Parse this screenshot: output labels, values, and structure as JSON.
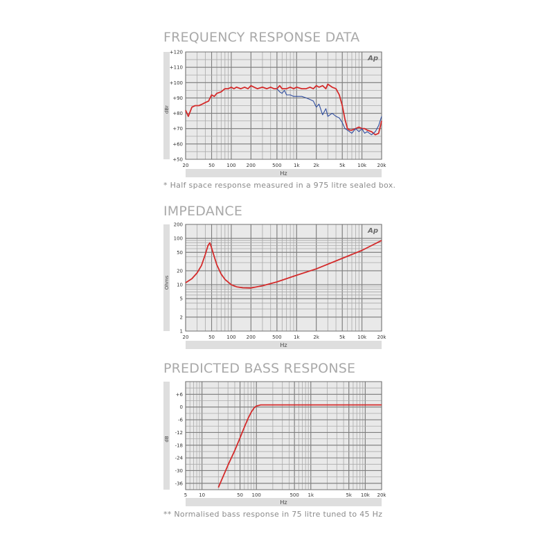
{
  "charts": [
    {
      "heading": "FREQUENCY RESPONSE DATA",
      "footnote": "* Half space response measured in a 975 litre sealed box.",
      "logo_text": "Ap",
      "colors": {
        "red": "#d42a2a",
        "blue": "#2f4da0",
        "plot_bg": "#e9e9e9",
        "grid": "#aaaaaa",
        "axis_bar": "#dedede"
      },
      "chart_data": {
        "type": "line",
        "title": "",
        "xlabel": "Hz",
        "ylabel": "dBr",
        "x_scale": "log",
        "xlim": [
          20,
          20000
        ],
        "ylim": [
          50,
          120
        ],
        "x_ticks": [
          20,
          50,
          100,
          200,
          500,
          1000,
          2000,
          5000,
          10000,
          20000
        ],
        "x_tick_labels": [
          "20",
          "50",
          "100",
          "200",
          "500",
          "1k",
          "2k",
          "5k",
          "10k",
          "20k"
        ],
        "y_ticks": [
          50,
          60,
          70,
          80,
          90,
          100,
          110,
          120
        ],
        "y_tick_labels": [
          "+50",
          "+60",
          "+70",
          "+80",
          "+90",
          "+100",
          "+110",
          "+120"
        ],
        "grid": true,
        "legend": "none",
        "series": [
          {
            "color": "red",
            "x": [
              20,
              22,
              25,
              28,
              32,
              36,
              40,
              45,
              50,
              55,
              60,
              70,
              80,
              90,
              100,
              110,
              120,
              140,
              160,
              180,
              200,
              250,
              300,
              350,
              400,
              450,
              500,
              550,
              600,
              700,
              800,
              900,
              1000,
              1200,
              1400,
              1600,
              1800,
              2000,
              2200,
              2500,
              2800,
              3000,
              3500,
              4000,
              4500,
              5000,
              5500,
              6000,
              6500,
              7000,
              8000,
              9000,
              10000,
              11000,
              12000,
              14000,
              16000,
              18000,
              20000
            ],
            "y": [
              82,
              78,
              84,
              85,
              85,
              86,
              87,
              88,
              92,
              91,
              93,
              94,
              96,
              96,
              97,
              96,
              97,
              96,
              97,
              96,
              98,
              96,
              97,
              96,
              97,
              96,
              96,
              98,
              96,
              96,
              97,
              96,
              97,
              96,
              96,
              97,
              96,
              98,
              97,
              98,
              96,
              99,
              97,
              96,
              92,
              85,
              76,
              70,
              69,
              69,
              70,
              71,
              70,
              70,
              69,
              68,
              66,
              67,
              75
            ]
          },
          {
            "color": "blue",
            "x": [
              500,
              550,
              600,
              650,
              700,
              800,
              900,
              1000,
              1200,
              1400,
              1600,
              1800,
              2000,
              2200,
              2500,
              2800,
              3000,
              3500,
              4000,
              4500,
              5000,
              5500,
              6000,
              7000,
              8000,
              9000,
              10000,
              11000,
              12000,
              14000,
              16000,
              18000,
              20000
            ],
            "y": [
              96,
              94,
              93,
              95,
              92,
              92,
              91,
              91,
              91,
              90,
              89,
              88,
              84,
              86,
              79,
              83,
              78,
              80,
              78,
              77,
              74,
              70,
              69,
              67,
              70,
              68,
              70,
              67,
              68,
              66,
              68,
              72,
              78
            ]
          }
        ]
      }
    },
    {
      "heading": "IMPEDANCE",
      "footnote": "",
      "logo_text": "Ap",
      "colors": {
        "red": "#d42a2a",
        "plot_bg": "#e9e9e9",
        "grid": "#aaaaaa",
        "axis_bar": "#dedede"
      },
      "chart_data": {
        "type": "line",
        "title": "",
        "xlabel": "Hz",
        "ylabel": "Ohms",
        "x_scale": "log",
        "y_scale": "log",
        "xlim": [
          20,
          20000
        ],
        "ylim": [
          1,
          200
        ],
        "x_ticks": [
          20,
          50,
          100,
          200,
          500,
          1000,
          2000,
          5000,
          10000,
          20000
        ],
        "x_tick_labels": [
          "20",
          "50",
          "100",
          "200",
          "500",
          "1k",
          "2k",
          "5k",
          "10k",
          "20k"
        ],
        "y_ticks": [
          1,
          2,
          5,
          10,
          20,
          50,
          100,
          200
        ],
        "y_tick_labels": [
          "1",
          "2",
          "5",
          "10",
          "20",
          "50",
          "100",
          "200"
        ],
        "grid": true,
        "legend": "none",
        "series": [
          {
            "color": "red",
            "x": [
              20,
              25,
              30,
              35,
              40,
              44,
              47,
              50,
              55,
              60,
              70,
              80,
              100,
              120,
              150,
              200,
              300,
              500,
              1000,
              2000,
              5000,
              10000,
              20000
            ],
            "y": [
              11,
              13.5,
              18,
              26,
              45,
              70,
              80,
              62,
              40,
              27,
              17,
              13,
              10,
              9,
              8.6,
              8.5,
              9.5,
              11.5,
              16,
              22,
              37,
              55,
              90
            ]
          }
        ]
      }
    },
    {
      "heading": "PREDICTED BASS RESPONSE",
      "footnote": "** Normalised bass response in 75 litre tuned to 45 Hz",
      "logo_text": "",
      "colors": {
        "red": "#d42a2a",
        "plot_bg": "#e9e9e9",
        "grid": "#aaaaaa",
        "axis_bar": "#dedede"
      },
      "chart_data": {
        "type": "line",
        "title": "",
        "xlabel": "Hz",
        "ylabel": "dB",
        "x_scale": "log",
        "xlim": [
          5,
          20000
        ],
        "ylim": [
          -39,
          12
        ],
        "x_ticks": [
          5,
          10,
          50,
          100,
          500,
          1000,
          5000,
          10000,
          20000
        ],
        "x_tick_labels": [
          "5",
          "10",
          "50",
          "100",
          "500",
          "1k",
          "5k",
          "10k",
          "20k"
        ],
        "y_ticks": [
          -36,
          -30,
          -24,
          -18,
          -12,
          -6,
          0,
          6
        ],
        "y_tick_labels": [
          "-36",
          "-30",
          "-24",
          "-18",
          "-12",
          "-6",
          "0",
          "+6"
        ],
        "grid": true,
        "legend": "none",
        "series": [
          {
            "color": "red",
            "x": [
              20,
              30,
              40,
              50,
              60,
              70,
              80,
              90,
              100,
              120,
              150,
              200,
              500,
              1000,
              5000,
              10000,
              20000
            ],
            "y": [
              -38,
              -27.5,
              -20.5,
              -14.5,
              -9.5,
              -5.5,
              -2.5,
              -0.5,
              0.5,
              1,
              1,
              1,
              1,
              1,
              1,
              1,
              1
            ]
          }
        ]
      }
    }
  ]
}
